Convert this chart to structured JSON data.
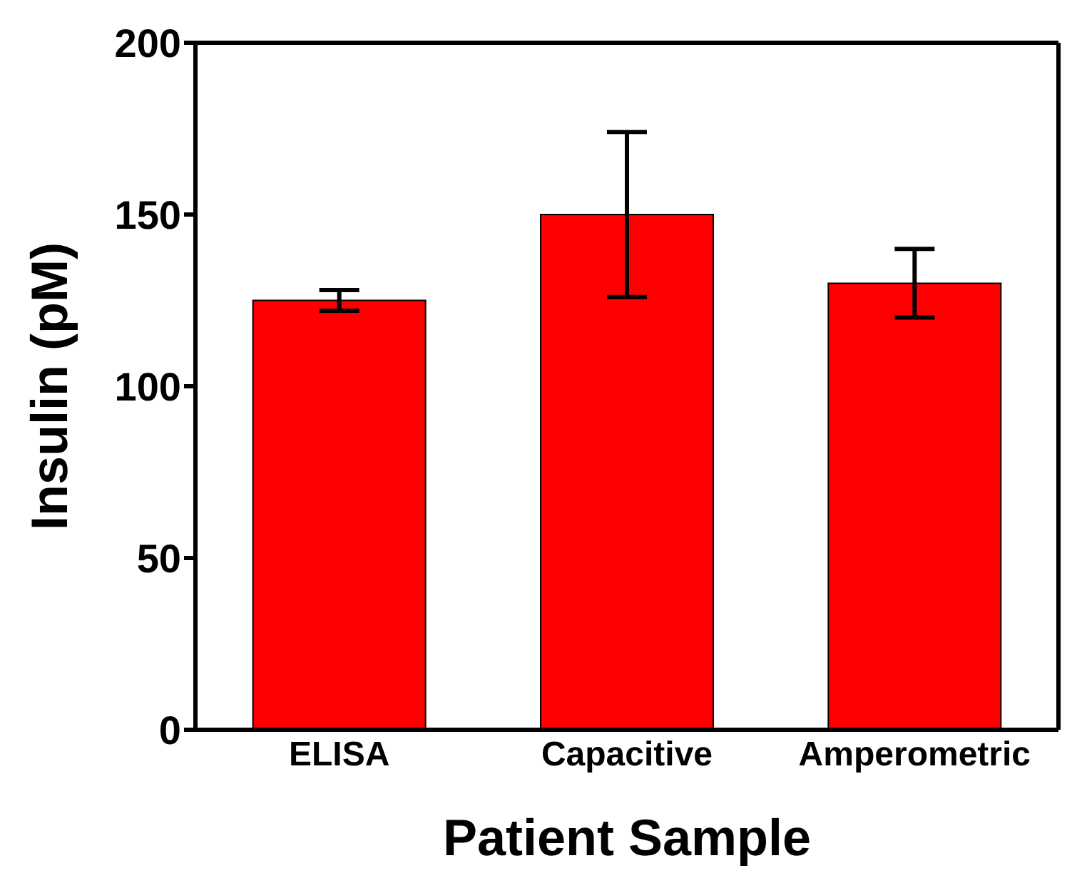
{
  "chart_data": {
    "type": "bar",
    "xlabel": "Patient Sample",
    "ylabel": "Insulin (pM)",
    "categories": [
      "ELISA",
      "Capacitive",
      "Amperometric"
    ],
    "values": [
      125,
      150,
      130
    ],
    "color": "#ff0000",
    "errors": [
      3,
      24,
      10
    ],
    "ylim": [
      0,
      200
    ],
    "yticks": [
      0,
      50,
      100,
      150,
      200
    ],
    "grid": false,
    "legend": false
  }
}
